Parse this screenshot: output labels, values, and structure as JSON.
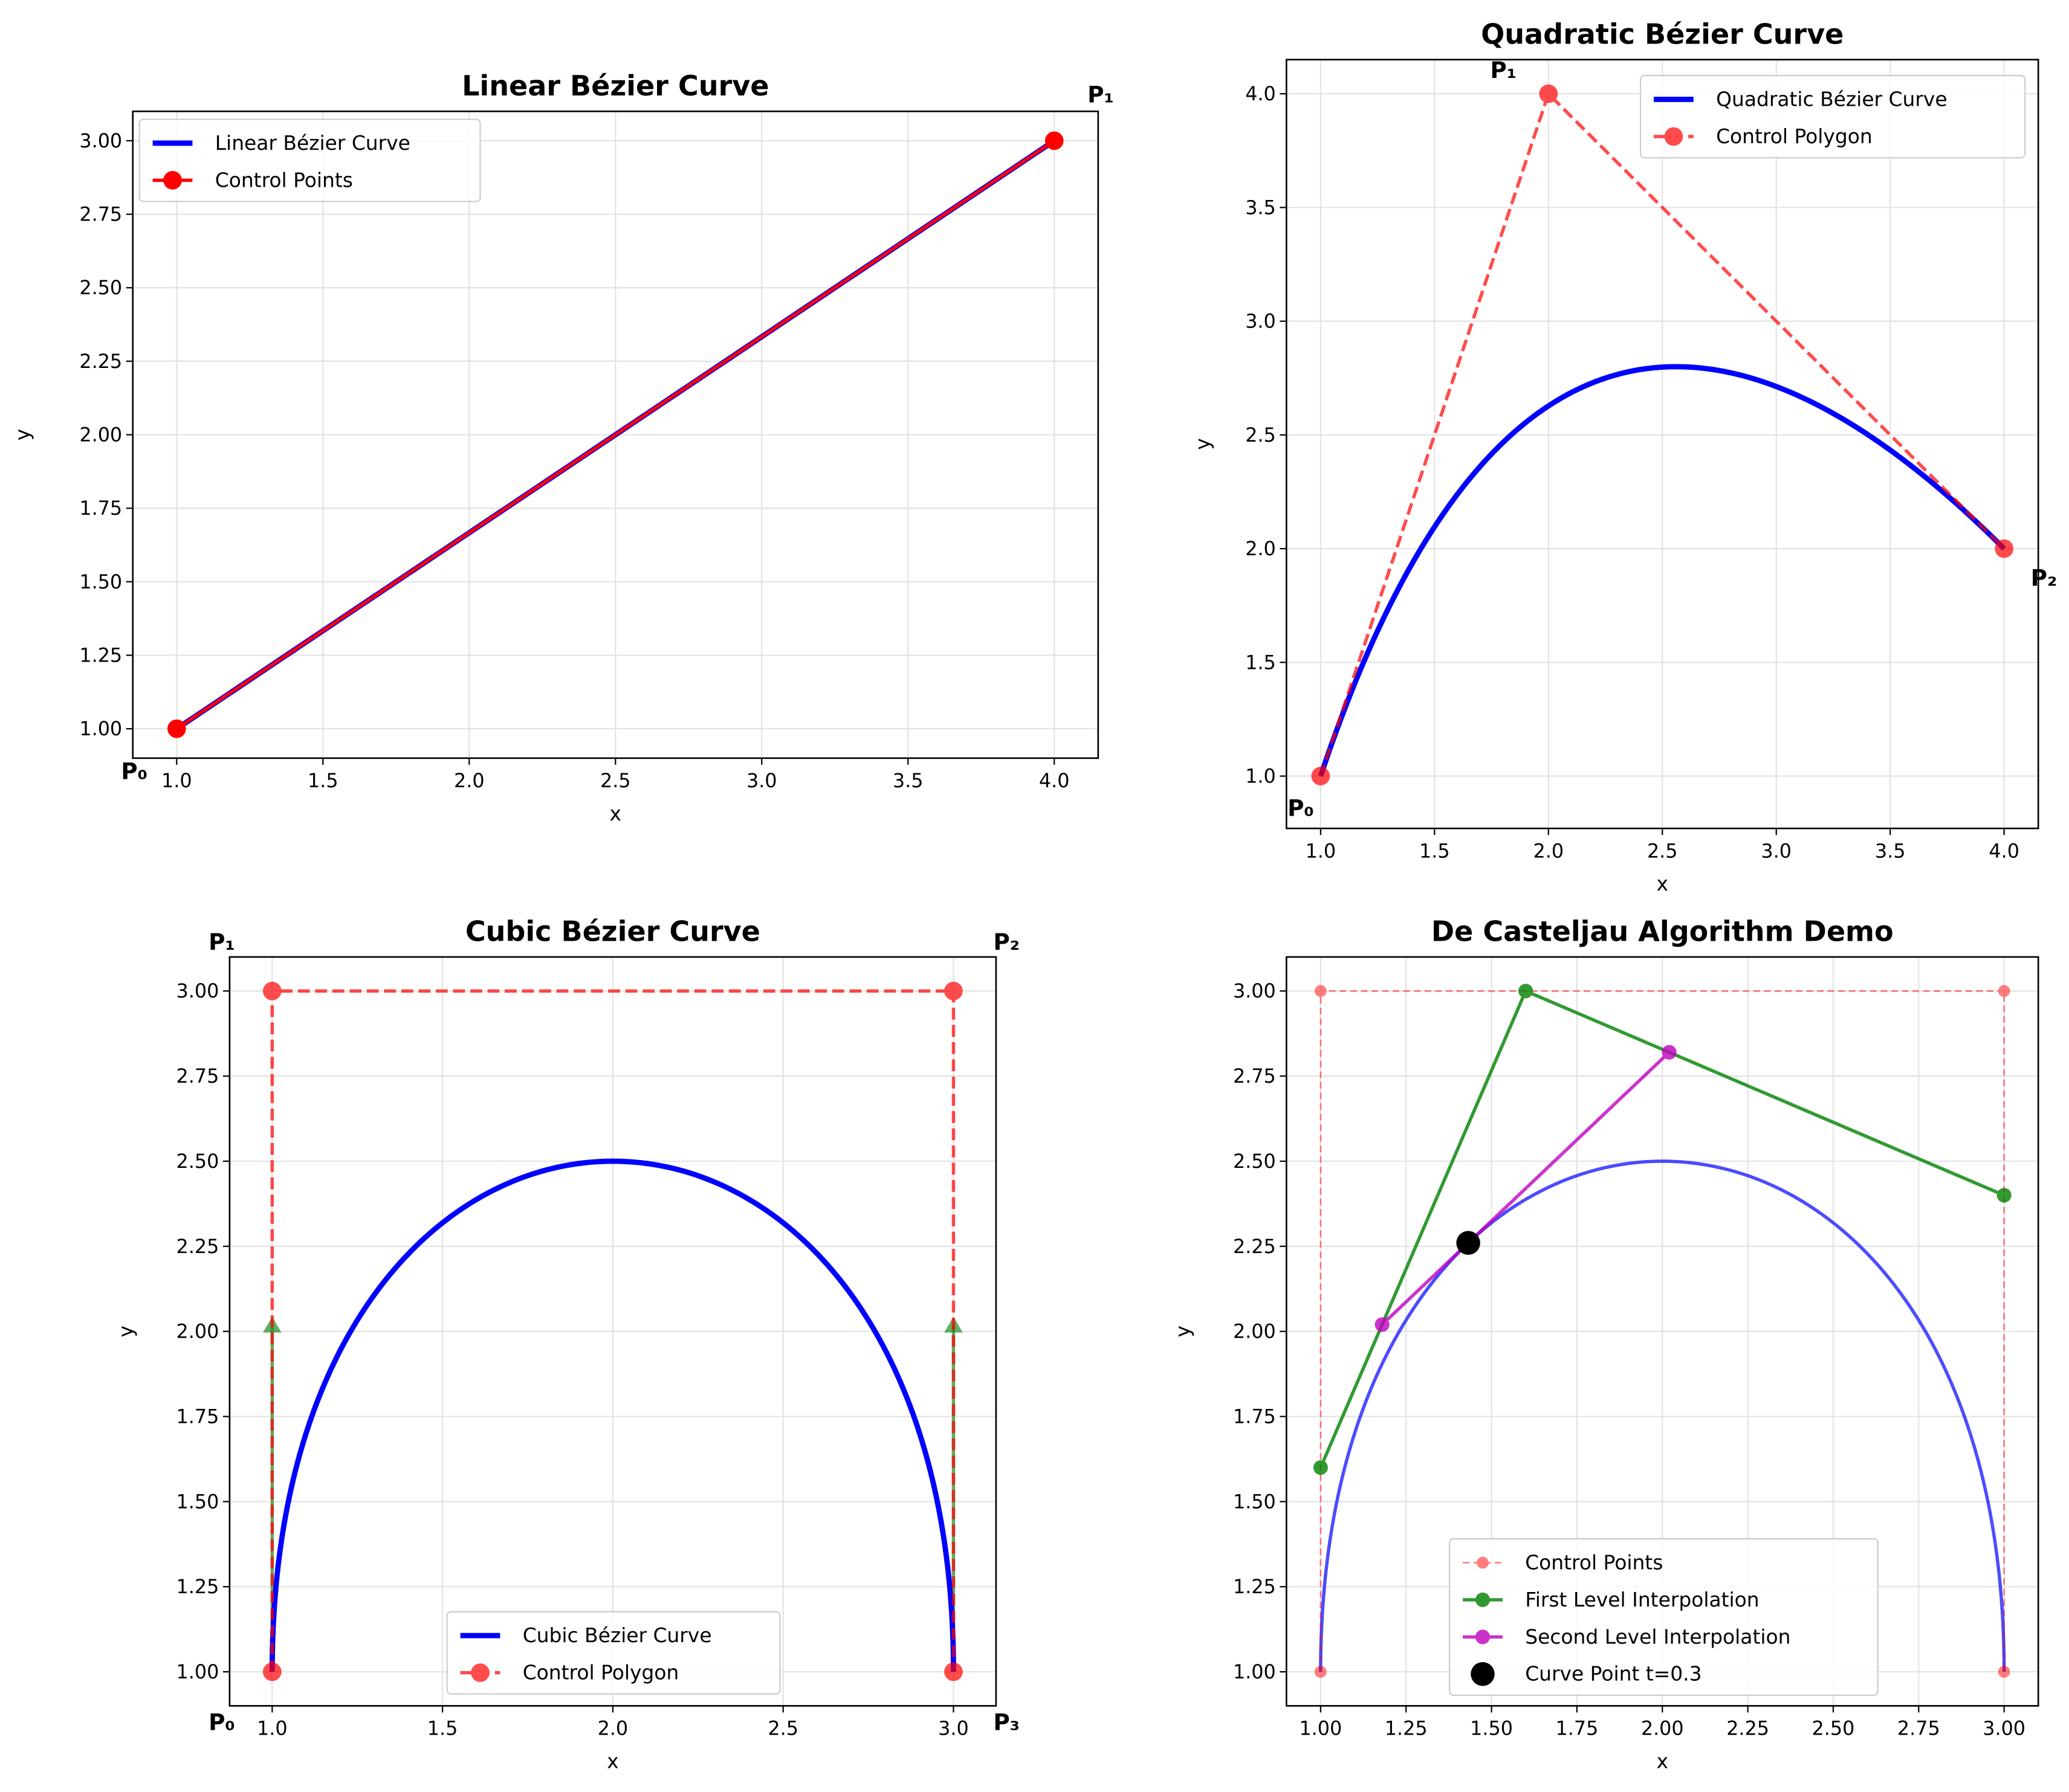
{
  "chart_data": [
    {
      "type": "line",
      "title": "Linear Bézier Curve",
      "xlabel": "x",
      "ylabel": "y",
      "xlim": [
        0.85,
        4.15
      ],
      "ylim": [
        0.9,
        3.1
      ],
      "xticks": [
        1.0,
        1.5,
        2.0,
        2.5,
        3.0,
        3.5,
        4.0
      ],
      "xtick_labels": [
        "1.0",
        "1.5",
        "2.0",
        "2.5",
        "3.0",
        "3.5",
        "4.0"
      ],
      "yticks": [
        1.0,
        1.25,
        1.5,
        1.75,
        2.0,
        2.25,
        2.5,
        2.75,
        3.0
      ],
      "ytick_labels": [
        "1.00",
        "1.25",
        "1.50",
        "1.75",
        "2.00",
        "2.25",
        "2.50",
        "2.75",
        "3.00"
      ],
      "grid": true,
      "legend_position": "upper-left",
      "control_points": [
        [
          1,
          1
        ],
        [
          4,
          3
        ]
      ],
      "series": [
        {
          "name": "Linear Bézier Curve",
          "style": "curve",
          "color": "#0000ff",
          "source": "bezier"
        },
        {
          "name": "Control Points",
          "style": "points-solid",
          "color": "#ff0000",
          "source": "control"
        }
      ],
      "annotations": [
        "P₀",
        "P₁"
      ]
    },
    {
      "type": "line",
      "title": "Quadratic Bézier Curve",
      "xlabel": "x",
      "ylabel": "y",
      "xlim": [
        0.85,
        4.15
      ],
      "ylim": [
        0.77,
        4.15
      ],
      "xticks": [
        1.0,
        1.5,
        2.0,
        2.5,
        3.0,
        3.5,
        4.0
      ],
      "xtick_labels": [
        "1.0",
        "1.5",
        "2.0",
        "2.5",
        "3.0",
        "3.5",
        "4.0"
      ],
      "yticks": [
        1.0,
        1.5,
        2.0,
        2.5,
        3.0,
        3.5,
        4.0
      ],
      "ytick_labels": [
        "1.0",
        "1.5",
        "2.0",
        "2.5",
        "3.0",
        "3.5",
        "4.0"
      ],
      "grid": true,
      "legend_position": "upper-right",
      "control_points": [
        [
          1,
          1
        ],
        [
          2,
          4
        ],
        [
          4,
          2
        ]
      ],
      "series": [
        {
          "name": "Quadratic Bézier Curve",
          "style": "curve",
          "color": "#0000ff",
          "source": "bezier"
        },
        {
          "name": "Control Polygon",
          "style": "points-dashed",
          "color": "#ff0000",
          "source": "control"
        }
      ],
      "annotations": [
        "P₀",
        "P₁",
        "P₂"
      ]
    },
    {
      "type": "line",
      "title": "Cubic Bézier Curve",
      "xlabel": "x",
      "ylabel": "y",
      "xlim": [
        0.875,
        3.125
      ],
      "ylim": [
        0.9,
        3.1
      ],
      "xticks": [
        1.0,
        1.5,
        2.0,
        2.5,
        3.0
      ],
      "xtick_labels": [
        "1.0",
        "1.5",
        "2.0",
        "2.5",
        "3.0"
      ],
      "yticks": [
        1.0,
        1.25,
        1.5,
        1.75,
        2.0,
        2.25,
        2.5,
        2.75,
        3.0
      ],
      "ytick_labels": [
        "1.00",
        "1.25",
        "1.50",
        "1.75",
        "2.00",
        "2.25",
        "2.50",
        "2.75",
        "3.00"
      ],
      "grid": true,
      "legend_position": "lower-center",
      "control_points": [
        [
          1,
          1
        ],
        [
          1,
          3
        ],
        [
          3,
          3
        ],
        [
          3,
          1
        ]
      ],
      "tangents": [
        [
          [
            1,
            1
          ],
          [
            1,
            2.02
          ]
        ],
        [
          [
            3,
            1
          ],
          [
            3,
            2.02
          ]
        ]
      ],
      "tangent_color": "#228b22",
      "series": [
        {
          "name": "Cubic Bézier Curve",
          "style": "curve",
          "color": "#0000ff",
          "source": "bezier"
        },
        {
          "name": "Control Polygon",
          "style": "points-dashed",
          "color": "#ff0000",
          "source": "control"
        }
      ],
      "annotations": [
        "P₀",
        "P₁",
        "P₂",
        "P₃"
      ]
    },
    {
      "type": "line",
      "title": "De Casteljau Algorithm Demo",
      "xlabel": "x",
      "ylabel": "y",
      "xlim": [
        0.9,
        3.1
      ],
      "ylim": [
        0.9,
        3.1
      ],
      "xticks": [
        1.0,
        1.25,
        1.5,
        1.75,
        2.0,
        2.25,
        2.5,
        2.75,
        3.0
      ],
      "xtick_labels": [
        "1.00",
        "1.25",
        "1.50",
        "1.75",
        "2.00",
        "2.25",
        "2.50",
        "2.75",
        "3.00"
      ],
      "yticks": [
        1.0,
        1.25,
        1.5,
        1.75,
        2.0,
        2.25,
        2.5,
        2.75,
        3.0
      ],
      "ytick_labels": [
        "1.00",
        "1.25",
        "1.50",
        "1.75",
        "2.00",
        "2.25",
        "2.50",
        "2.75",
        "3.00"
      ],
      "grid": true,
      "legend_position": "lower-center",
      "control_points": [
        [
          1,
          1
        ],
        [
          1,
          3
        ],
        [
          3,
          3
        ],
        [
          3,
          1
        ]
      ],
      "t": 0.3,
      "series": [
        {
          "name": "",
          "style": "curve-light",
          "color": "#0000ff",
          "source": "bezier"
        },
        {
          "name": "Control Points",
          "style": "points-thin-dashed",
          "color": "#ff0000",
          "source": "control"
        },
        {
          "name": "First Level Interpolation",
          "style": "level",
          "color": "#008000",
          "points": [
            [
              1,
              1.6
            ],
            [
              1.6,
              3
            ],
            [
              3,
              2.4
            ]
          ]
        },
        {
          "name": "Second Level Interpolation",
          "style": "level",
          "color": "#bf00bf",
          "points": [
            [
              1.18,
              2.02
            ],
            [
              2.02,
              2.82
            ]
          ]
        },
        {
          "name": "Curve Point t=0.3",
          "style": "bigdot",
          "color": "#000000",
          "points": [
            [
              1.432,
              2.26
            ]
          ]
        }
      ],
      "annotations": []
    }
  ]
}
